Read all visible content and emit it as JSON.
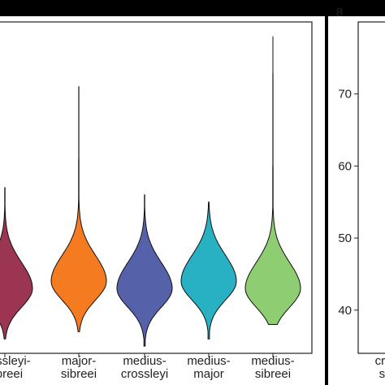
{
  "chart_data": [
    {
      "type": "violin",
      "categories": [
        "crossleyi-sibreei",
        "major-sibreei",
        "medius-crossleyi",
        "medius-major",
        "medius-sibreei"
      ],
      "category_lines": [
        [
          "crossleyi-",
          "sibreei"
        ],
        [
          "major-",
          "sibreei"
        ],
        [
          "medius-",
          "crossleyi"
        ],
        [
          "medius-",
          "major"
        ],
        [
          "medius-",
          "sibreei"
        ]
      ],
      "colors": [
        "#9c3552",
        "#f47b20",
        "#5561a8",
        "#27b1c3",
        "#8fcd72"
      ],
      "ranges": [
        [
          36,
          57
        ],
        [
          37,
          71
        ],
        [
          35,
          56
        ],
        [
          36,
          55
        ],
        [
          38,
          78
        ]
      ],
      "widest_at": [
        43,
        44,
        43,
        44,
        43
      ],
      "ylim": [
        34,
        80
      ],
      "title": "",
      "xlabel": "",
      "ylabel": ""
    },
    {
      "type": "violin",
      "categories": [
        "crossleyi-sibreei"
      ],
      "category_lines": [
        [
          "cro",
          "si"
        ]
      ],
      "y_ticks": [
        40,
        50,
        60,
        70
      ],
      "top_tick": "8",
      "ylim": [
        34,
        80
      ],
      "title": "",
      "xlabel": "",
      "ylabel": ""
    }
  ]
}
